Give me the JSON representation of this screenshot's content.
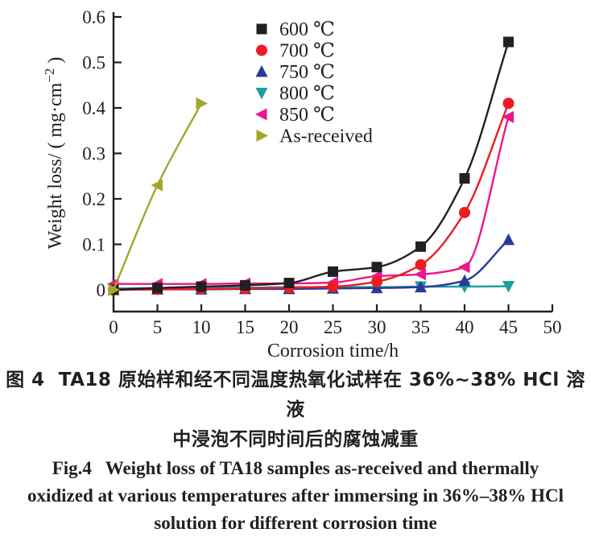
{
  "figure_caption": {
    "zh_line1": "图 4  TA18 原始样和经不同温度热氧化试样在 36%~38% HCl 溶液",
    "zh_line2": "中浸泡不同时间后的腐蚀减重",
    "en_line1": "Fig.4   Weight loss of TA18 samples as-received and thermally",
    "en_line2": "oxidized at various temperatures after immersing in 36%–38% HCl",
    "en_line3": "solution for different corrosion time"
  },
  "chart_data": {
    "type": "line",
    "title": "",
    "xlabel": "Corrosion time/h",
    "ylabel": "Weight loss/ ( mg·cm−2 )",
    "ylabel_parts": {
      "prefix": "Weight loss/ ( mg·cm",
      "sup": "−2",
      "suffix": " )"
    },
    "xlim": [
      0,
      50
    ],
    "ylim": [
      0,
      0.6
    ],
    "xticks": [
      0,
      5,
      10,
      15,
      20,
      25,
      30,
      35,
      40,
      45,
      50
    ],
    "yticks": [
      0,
      0.1,
      0.2,
      0.3,
      0.4,
      0.5,
      0.6
    ],
    "ytick_labels": [
      "0",
      "0.1",
      "0.2",
      "0.3",
      "0.4",
      "0.5",
      "0.6"
    ],
    "grid": false,
    "legend_position": "upper-left-inside",
    "axis_color": "#231f20",
    "series": [
      {
        "name": "600 ℃",
        "marker": "square",
        "color": "#231f20",
        "x": [
          0,
          5,
          10,
          15,
          20,
          25,
          30,
          35,
          40,
          45
        ],
        "values": [
          0,
          0.004,
          0.007,
          0.01,
          0.015,
          0.04,
          0.05,
          0.095,
          0.245,
          0.545
        ]
      },
      {
        "name": "700 ℃",
        "marker": "circle",
        "color": "#ec1c24",
        "x": [
          0,
          5,
          10,
          15,
          20,
          25,
          30,
          35,
          40,
          45
        ],
        "values": [
          0,
          0.001,
          0.002,
          0.003,
          0.005,
          0.007,
          0.018,
          0.055,
          0.17,
          0.41
        ]
      },
      {
        "name": "750 ℃",
        "marker": "triangle-up",
        "color": "#2b3a97",
        "x": [
          0,
          5,
          10,
          15,
          20,
          25,
          30,
          35,
          40,
          45
        ],
        "values": [
          0,
          0.001,
          0.001,
          0.002,
          0.002,
          0.003,
          0.004,
          0.006,
          0.02,
          0.11
        ]
      },
      {
        "name": "800 ℃",
        "marker": "triangle-down",
        "color": "#1ba0a2",
        "x": [
          0,
          5,
          10,
          15,
          20,
          25,
          30,
          35,
          40,
          45
        ],
        "values": [
          0.003,
          0.004,
          0.005,
          0.005,
          0.006,
          0.006,
          0.006,
          0.007,
          0.007,
          0.008
        ]
      },
      {
        "name": "850 ℃",
        "marker": "triangle-left",
        "color": "#ec168c",
        "x": [
          0,
          5,
          10,
          15,
          20,
          25,
          30,
          35,
          40,
          45
        ],
        "values": [
          0.013,
          0.013,
          0.013,
          0.014,
          0.014,
          0.016,
          0.03,
          0.034,
          0.05,
          0.38
        ]
      },
      {
        "name": "As-received",
        "marker": "triangle-right",
        "color": "#a2a72a",
        "x": [
          0,
          5,
          10
        ],
        "values": [
          0,
          0.23,
          0.41
        ],
        "marker_angles": [
          0,
          180,
          0
        ]
      }
    ],
    "draw_order": [
      3,
      2,
      4,
      1,
      0,
      5
    ]
  }
}
